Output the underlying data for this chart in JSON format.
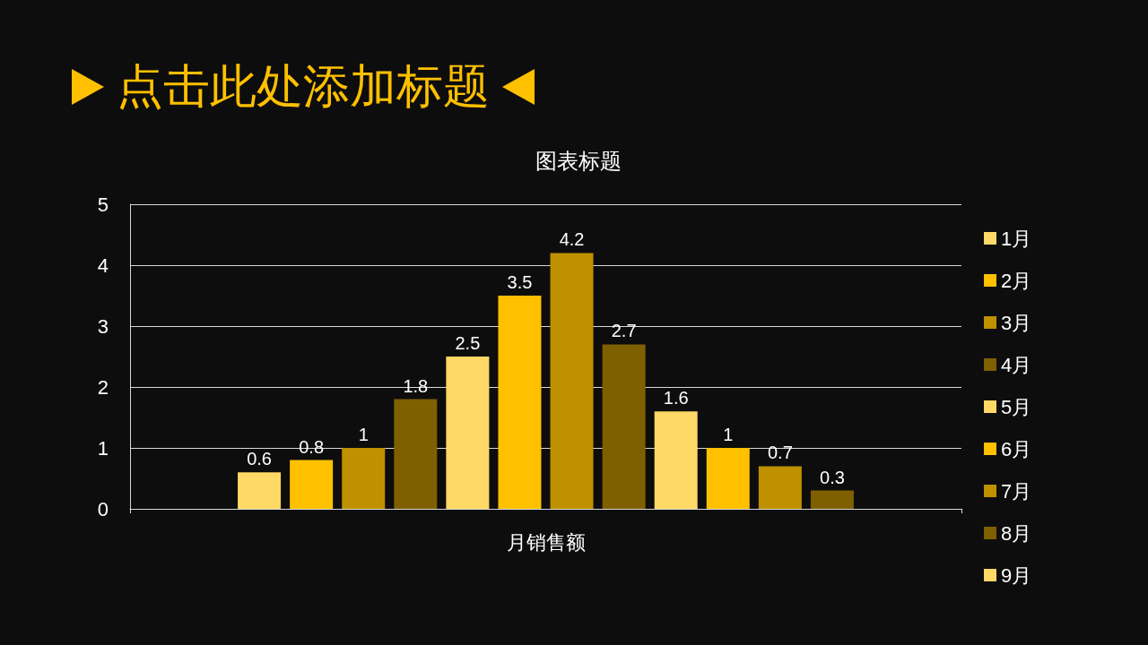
{
  "chart_data": {
    "type": "bar",
    "title": "点击此处添加标题",
    "subtitle": "图表标题",
    "categories": [
      "月销售额"
    ],
    "series": [
      {
        "name": "1月",
        "color": "#ffd966",
        "values": [
          0.6
        ]
      },
      {
        "name": "2月",
        "color": "#ffc000",
        "values": [
          0.8
        ]
      },
      {
        "name": "3月",
        "color": "#bf9000",
        "values": [
          1
        ]
      },
      {
        "name": "4月",
        "color": "#7f6000",
        "values": [
          1.8
        ]
      },
      {
        "name": "5月",
        "color": "#ffd966",
        "values": [
          2.5
        ]
      },
      {
        "name": "6月",
        "color": "#ffc000",
        "values": [
          3.5
        ]
      },
      {
        "name": "7月",
        "color": "#bf9000",
        "values": [
          4.2
        ]
      },
      {
        "name": "8月",
        "color": "#7f6000",
        "values": [
          2.7
        ]
      },
      {
        "name": "9月",
        "color": "#ffd966",
        "values": [
          1.6
        ]
      },
      {
        "color": "#ffc000",
        "values": [
          1
        ]
      },
      {
        "color": "#bf9000",
        "values": [
          0.7
        ]
      },
      {
        "color": "#7f6000",
        "values": [
          0.3
        ]
      }
    ],
    "ylim": [
      0,
      5
    ],
    "yticks": [
      0,
      1,
      2,
      3,
      4,
      5
    ],
    "grid": "y",
    "legend": "right",
    "data_labels": true
  }
}
